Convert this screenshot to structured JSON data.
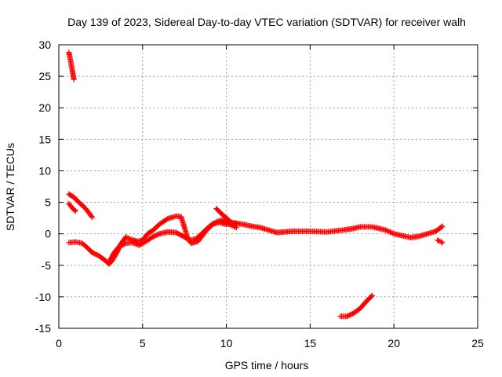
{
  "chart_data": {
    "type": "scatter",
    "title": "Day 139 of 2023, Sidereal Day-to-day VTEC variation (SDTVAR) for receiver walh",
    "xlabel": "GPS time / hours",
    "ylabel": "SDTVAR / TECUs",
    "xlim": [
      0,
      25
    ],
    "ylim": [
      -15,
      30
    ],
    "xticks": [
      0,
      5,
      10,
      15,
      20,
      25
    ],
    "yticks": [
      -15,
      -10,
      -5,
      0,
      5,
      10,
      15,
      20,
      25,
      30
    ],
    "grid": true,
    "marker": "plus",
    "series": [
      {
        "name": "SDTVAR",
        "color": "#ff0000",
        "segments": [
          [
            [
              0.6,
              28.8
            ],
            [
              0.7,
              27.5
            ],
            [
              0.8,
              26.0
            ],
            [
              0.9,
              24.5
            ]
          ],
          [
            [
              0.6,
              6.3
            ],
            [
              0.9,
              5.8
            ],
            [
              1.2,
              5.0
            ],
            [
              1.6,
              4.0
            ],
            [
              2.0,
              2.6
            ]
          ],
          [
            [
              0.6,
              4.8
            ],
            [
              0.8,
              4.1
            ],
            [
              1.0,
              3.6
            ]
          ],
          [
            [
              0.6,
              -1.4
            ],
            [
              1.0,
              -1.3
            ],
            [
              1.4,
              -1.5
            ],
            [
              1.7,
              -2.2
            ],
            [
              2.0,
              -3.0
            ],
            [
              2.4,
              -3.5
            ],
            [
              2.8,
              -4.3
            ],
            [
              3.0,
              -4.8
            ],
            [
              3.2,
              -4.2
            ],
            [
              3.5,
              -2.8
            ],
            [
              3.7,
              -1.6
            ],
            [
              4.0,
              -0.5
            ],
            [
              4.3,
              -0.9
            ],
            [
              4.7,
              -1.2
            ],
            [
              5.0,
              -1.0
            ],
            [
              5.3,
              0.0
            ],
            [
              5.6,
              0.5
            ],
            [
              6.0,
              1.5
            ],
            [
              6.5,
              2.4
            ],
            [
              7.0,
              2.8
            ],
            [
              7.3,
              2.7
            ],
            [
              7.5,
              1.0
            ],
            [
              7.7,
              -0.8
            ],
            [
              7.9,
              -1.5
            ],
            [
              8.3,
              -1.2
            ],
            [
              8.8,
              0.5
            ],
            [
              9.2,
              1.6
            ],
            [
              9.6,
              1.8
            ],
            [
              10.0,
              1.5
            ],
            [
              10.5,
              1.7
            ],
            [
              11.0,
              1.5
            ],
            [
              11.5,
              1.2
            ],
            [
              12.0,
              1.0
            ],
            [
              12.5,
              0.6
            ],
            [
              13.0,
              0.2
            ],
            [
              13.5,
              0.3
            ],
            [
              14.0,
              0.4
            ],
            [
              15.0,
              0.4
            ],
            [
              16.0,
              0.3
            ],
            [
              17.0,
              0.6
            ],
            [
              17.5,
              0.8
            ],
            [
              18.0,
              1.1
            ],
            [
              18.7,
              1.1
            ],
            [
              19.5,
              0.6
            ],
            [
              20.0,
              0.0
            ],
            [
              20.5,
              -0.3
            ],
            [
              21.0,
              -0.6
            ],
            [
              21.5,
              -0.4
            ],
            [
              22.0,
              0.0
            ],
            [
              22.5,
              0.4
            ],
            [
              22.9,
              1.2
            ]
          ],
          [
            [
              3.0,
              -4.5
            ],
            [
              3.3,
              -3.0
            ],
            [
              3.6,
              -2.0
            ],
            [
              4.0,
              -1.5
            ],
            [
              4.4,
              -1.4
            ],
            [
              4.8,
              -1.8
            ],
            [
              5.2,
              -1.2
            ],
            [
              5.6,
              -0.5
            ],
            [
              6.0,
              0.0
            ],
            [
              6.5,
              0.3
            ],
            [
              7.0,
              0.2
            ],
            [
              7.5,
              -0.5
            ],
            [
              7.8,
              -1.0
            ],
            [
              8.2,
              -0.8
            ],
            [
              8.6,
              0.2
            ],
            [
              9.0,
              1.2
            ],
            [
              9.5,
              2.0
            ],
            [
              9.8,
              2.2
            ],
            [
              10.2,
              1.5
            ],
            [
              10.6,
              1.0
            ]
          ],
          [
            [
              9.4,
              4.0
            ],
            [
              9.7,
              3.2
            ],
            [
              10.0,
              2.5
            ],
            [
              10.3,
              1.8
            ],
            [
              10.6,
              1.6
            ]
          ],
          [
            [
              22.6,
              -1.0
            ],
            [
              22.9,
              -1.4
            ]
          ],
          [
            [
              16.8,
              -13.1
            ],
            [
              17.2,
              -13.1
            ],
            [
              17.6,
              -12.6
            ],
            [
              18.0,
              -11.8
            ],
            [
              18.4,
              -10.6
            ],
            [
              18.7,
              -9.8
            ]
          ]
        ]
      }
    ]
  }
}
